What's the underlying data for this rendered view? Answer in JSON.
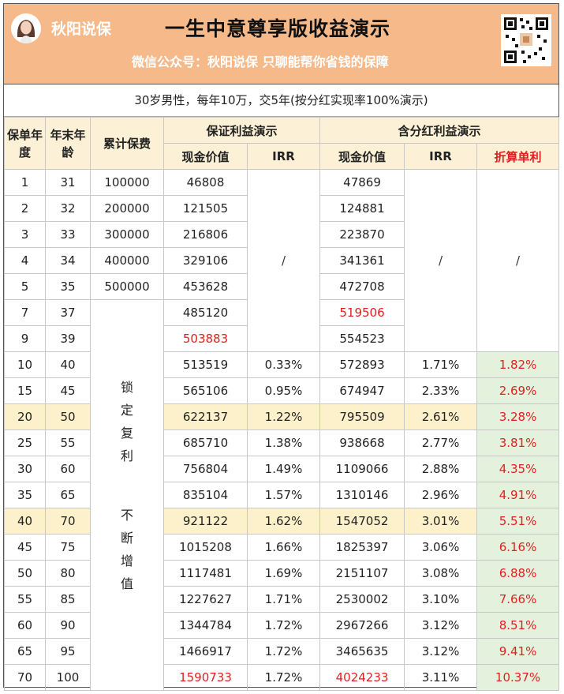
{
  "header": {
    "brand": "秋阳说保",
    "title": "一生中意尊享版收益演示",
    "subtitle": "微信公众号：秋阳说保   只聊能帮你省钱的保障",
    "avatar_icon": "avatar-portrait-icon",
    "qr_icon": "qr-code-icon",
    "bg_color": "#f5b98a"
  },
  "caption": "30岁男性，每年10万，交5年(按分红实现率100%演示)",
  "columns": {
    "policy_year": "保单年度",
    "age": "年末年龄",
    "cum_premium": "累计保费",
    "guaranteed_group": "保证利益演示",
    "dividend_group": "含分红利益演示",
    "cash_value": "现金价值",
    "irr": "IRR",
    "cash_value2": "现金价值",
    "irr2": "IRR",
    "simple_rate": "折算单利"
  },
  "slash": "/",
  "side_note_1": "锁定复利",
  "side_note_2": "不断增值",
  "rows": [
    {
      "year": "1",
      "age": "31",
      "premium": "100000",
      "gcv": "46808",
      "girr": "",
      "dcv": "47869",
      "dirr": "",
      "simple": ""
    },
    {
      "year": "2",
      "age": "32",
      "premium": "200000",
      "gcv": "121505",
      "girr": "",
      "dcv": "124881",
      "dirr": "",
      "simple": ""
    },
    {
      "year": "3",
      "age": "33",
      "premium": "300000",
      "gcv": "216806",
      "girr": "",
      "dcv": "223870",
      "dirr": "",
      "simple": ""
    },
    {
      "year": "4",
      "age": "34",
      "premium": "400000",
      "gcv": "329106",
      "girr": "",
      "dcv": "341361",
      "dirr": "",
      "simple": ""
    },
    {
      "year": "5",
      "age": "35",
      "premium": "500000",
      "gcv": "453628",
      "girr": "",
      "dcv": "472708",
      "dirr": "",
      "simple": ""
    },
    {
      "year": "7",
      "age": "37",
      "premium": "",
      "gcv": "485120",
      "girr": "",
      "dcv": "519506",
      "dirr": "",
      "simple": ""
    },
    {
      "year": "9",
      "age": "39",
      "premium": "",
      "gcv": "503883",
      "girr": "",
      "dcv": "554523",
      "dirr": "",
      "simple": ""
    },
    {
      "year": "10",
      "age": "40",
      "premium": "",
      "gcv": "513519",
      "girr": "0.33%",
      "dcv": "572893",
      "dirr": "1.71%",
      "simple": "1.82%"
    },
    {
      "year": "15",
      "age": "45",
      "premium": "",
      "gcv": "565106",
      "girr": "0.95%",
      "dcv": "674947",
      "dirr": "2.33%",
      "simple": "2.69%"
    },
    {
      "year": "20",
      "age": "50",
      "premium": "",
      "gcv": "622137",
      "girr": "1.22%",
      "dcv": "795509",
      "dirr": "2.61%",
      "simple": "3.28%"
    },
    {
      "year": "25",
      "age": "55",
      "premium": "",
      "gcv": "685710",
      "girr": "1.38%",
      "dcv": "938668",
      "dirr": "2.77%",
      "simple": "3.81%"
    },
    {
      "year": "30",
      "age": "60",
      "premium": "",
      "gcv": "756804",
      "girr": "1.49%",
      "dcv": "1109066",
      "dirr": "2.88%",
      "simple": "4.35%"
    },
    {
      "year": "35",
      "age": "65",
      "premium": "",
      "gcv": "835104",
      "girr": "1.57%",
      "dcv": "1310146",
      "dirr": "2.96%",
      "simple": "4.91%"
    },
    {
      "year": "40",
      "age": "70",
      "premium": "",
      "gcv": "921122",
      "girr": "1.62%",
      "dcv": "1547052",
      "dirr": "3.01%",
      "simple": "5.51%"
    },
    {
      "year": "45",
      "age": "75",
      "premium": "",
      "gcv": "1015208",
      "girr": "1.66%",
      "dcv": "1825397",
      "dirr": "3.06%",
      "simple": "6.16%"
    },
    {
      "year": "50",
      "age": "80",
      "premium": "",
      "gcv": "1117481",
      "girr": "1.69%",
      "dcv": "2151107",
      "dirr": "3.08%",
      "simple": "6.88%"
    },
    {
      "year": "55",
      "age": "85",
      "premium": "",
      "gcv": "1227627",
      "girr": "1.71%",
      "dcv": "2530002",
      "dirr": "3.10%",
      "simple": "7.66%"
    },
    {
      "year": "60",
      "age": "90",
      "premium": "",
      "gcv": "1344784",
      "girr": "1.72%",
      "dcv": "2967266",
      "dirr": "3.12%",
      "simple": "8.51%"
    },
    {
      "year": "65",
      "age": "95",
      "premium": "",
      "gcv": "1466917",
      "girr": "1.72%",
      "dcv": "3465635",
      "dirr": "3.12%",
      "simple": "9.41%"
    },
    {
      "year": "70",
      "age": "100",
      "premium": "",
      "gcv": "1590733",
      "girr": "1.72%",
      "dcv": "4024233",
      "dirr": "3.11%",
      "simple": "10.37%"
    }
  ],
  "colors": {
    "highlight_row": "#fdf1cc",
    "header_cell": "#fcf0d6",
    "green_cell": "#e4f2dd",
    "red_text": "#e02020"
  }
}
